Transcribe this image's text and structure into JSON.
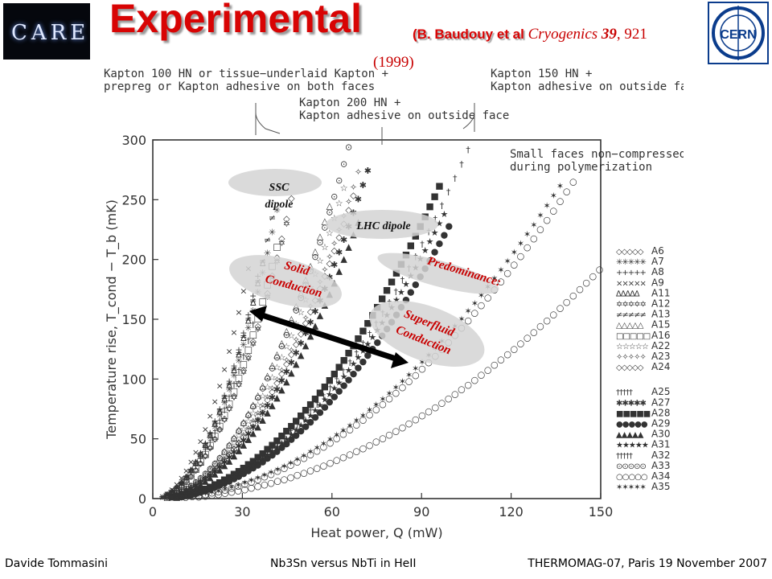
{
  "slide": {
    "title": "Experimental",
    "reference": {
      "authors": "(B. Baudouy et al",
      "journal": "Cryogenics",
      "volume": "39",
      "pages": ", 921",
      "year": "(1999)"
    },
    "logo_left_text": "CARE",
    "logo_right_text": "CERN",
    "footer": {
      "left": "Davide Tommasini",
      "center": "Nb3Sn versus NbTi in HeII",
      "right": "THERMOMAG-07, Paris 19 November 2007"
    },
    "colors": {
      "title": "#d80404",
      "annotation_text": "#c80000",
      "bubble": "#d4d4d4"
    }
  },
  "annotations": {
    "top_labels": [
      {
        "lines": [
          "Kapton 100 HN or tissue−underlaid Kapton +",
          "prepreg or Kapton adhesive on both faces"
        ]
      },
      {
        "lines": [
          "Kapton 200 HN +",
          "Kapton adhesive on outside face"
        ]
      },
      {
        "lines": [
          "Kapton 150 HN +",
          "Kapton adhesive on outside face"
        ]
      }
    ],
    "note": [
      "Small faces non−compressed",
      "during polymerization"
    ],
    "bubbles": {
      "ssc": [
        "SSC",
        "dipole"
      ],
      "lhc": "LHC dipole",
      "predominance": "Predominance:",
      "solid": [
        "Solid",
        "Conduction"
      ],
      "superfluid": [
        "Superfluid",
        "Conduction"
      ]
    }
  },
  "chart_data": {
    "type": "scatter",
    "title": "",
    "xlabel": "Heat power, Q (mW)",
    "ylabel": "Temperature rise, T_cond − T_b (mK)",
    "xlim": [
      0,
      150
    ],
    "ylim": [
      0,
      300
    ],
    "xticks": [
      0,
      30,
      60,
      90,
      120,
      150
    ],
    "yticks": [
      0,
      50,
      100,
      150,
      200,
      250,
      300
    ],
    "grid": false,
    "legend_position": "right",
    "series": [
      {
        "name": "A6",
        "marker": "◇",
        "x_end": 47,
        "y_end": 258
      },
      {
        "name": "A7",
        "marker": "✳",
        "x_end": 44,
        "y_end": 270
      },
      {
        "name": "A8",
        "marker": "+",
        "x_end": 36,
        "y_end": 195
      },
      {
        "name": "A9",
        "marker": "×",
        "x_end": 33,
        "y_end": 205
      },
      {
        "name": "A11",
        "marker": "∆",
        "x_end": 38,
        "y_end": 210
      },
      {
        "name": "A12",
        "marker": "✡",
        "x_end": 45,
        "y_end": 232
      },
      {
        "name": "A13",
        "marker": "≠",
        "x_end": 40,
        "y_end": 235
      },
      {
        "name": "A15",
        "marker": "△",
        "x_end": 60,
        "y_end": 252
      },
      {
        "name": "A16",
        "marker": "□",
        "x_end": 42,
        "y_end": 215
      },
      {
        "name": "A22",
        "marker": "☆",
        "x_end": 64,
        "y_end": 260
      },
      {
        "name": "A23",
        "marker": "✧",
        "x_end": 70,
        "y_end": 283
      },
      {
        "name": "A24",
        "marker": "◇",
        "x_end": 68,
        "y_end": 260
      },
      {
        "name": "A25",
        "marker": "†",
        "x_end": 35,
        "y_end": 158
      },
      {
        "name": "A27",
        "marker": "✱",
        "x_end": 73,
        "y_end": 282
      },
      {
        "name": "A28",
        "marker": "■",
        "x_end": 96,
        "y_end": 262
      },
      {
        "name": "A29",
        "marker": "●",
        "x_end": 100,
        "y_end": 232
      },
      {
        "name": "A30",
        "marker": "▲",
        "x_end": 70,
        "y_end": 240
      },
      {
        "name": "A31",
        "marker": "★",
        "x_end": 98,
        "y_end": 240
      },
      {
        "name": "A32",
        "marker": "†",
        "x_end": 106,
        "y_end": 294
      },
      {
        "name": "A33",
        "marker": "⊙",
        "x_end": 66,
        "y_end": 298
      },
      {
        "name": "A34",
        "marker": "○",
        "x_end": 142,
        "y_end": 270
      },
      {
        "name": "A35",
        "marker": "✶",
        "x_end": 138,
        "y_end": 268
      },
      {
        "name": "",
        "marker": "○",
        "x_end": 150,
        "y_end": 193
      }
    ]
  }
}
